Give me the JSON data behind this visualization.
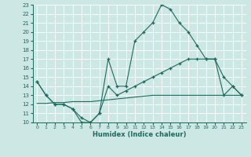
{
  "xlabel": "Humidex (Indice chaleur)",
  "xlim": [
    -0.5,
    23.5
  ],
  "ylim": [
    10,
    23
  ],
  "yticks": [
    10,
    11,
    12,
    13,
    14,
    15,
    16,
    17,
    18,
    19,
    20,
    21,
    22,
    23
  ],
  "xticks": [
    0,
    1,
    2,
    3,
    4,
    5,
    6,
    7,
    8,
    9,
    10,
    11,
    12,
    13,
    14,
    15,
    16,
    17,
    18,
    19,
    20,
    21,
    22,
    23
  ],
  "bg_color": "#cde8e4",
  "line_color": "#1a6b5e",
  "grid_color": "#b0d8d2",
  "line1_y": [
    14.5,
    13,
    12,
    12,
    11.5,
    10,
    10,
    11,
    17,
    14,
    14,
    19,
    20,
    21,
    23,
    22.5,
    21,
    20,
    18.5,
    17,
    17,
    15,
    14,
    13
  ],
  "line2_y": [
    14.5,
    13,
    12,
    12,
    11.5,
    10.5,
    10,
    11,
    14,
    13,
    13.5,
    14,
    14.5,
    15,
    15.5,
    16,
    16.5,
    17,
    17,
    17,
    17,
    13,
    14,
    13
  ],
  "line3_y": [
    12.1,
    12.1,
    12.2,
    12.2,
    12.3,
    12.3,
    12.3,
    12.4,
    12.5,
    12.6,
    12.7,
    12.8,
    12.9,
    13.0,
    13.0,
    13.0,
    13.0,
    13.0,
    13.0,
    13.0,
    13.0,
    13.0,
    13.0,
    13.0
  ]
}
